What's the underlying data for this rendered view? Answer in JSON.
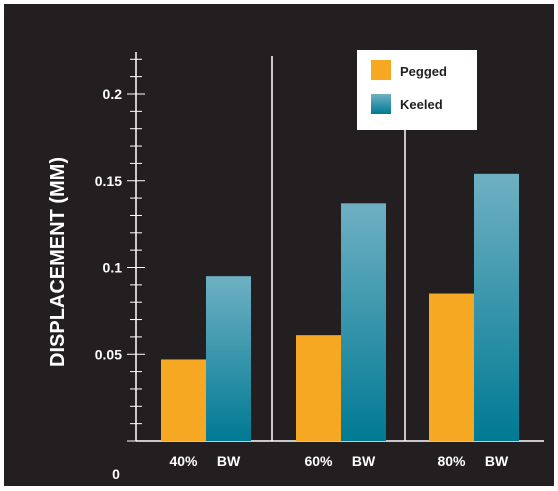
{
  "chart_data": {
    "type": "bar",
    "ylabel": "DISPLACEMENT (MM)",
    "ylim": [
      0,
      0.225
    ],
    "y_ticks": [
      "0.05",
      "0.1",
      "0.15",
      "0.2"
    ],
    "y_tick_values": [
      0.05,
      0.1,
      0.15,
      0.2
    ],
    "zero_label": "0",
    "grid": false,
    "groups": [
      {
        "categories": [
          "40%",
          "BW"
        ]
      },
      {
        "categories": [
          "60%",
          "BW"
        ]
      },
      {
        "categories": [
          "80%",
          "BW"
        ]
      }
    ],
    "series": [
      {
        "name": "Pegged",
        "values": [
          0.047,
          0.061,
          0.085
        ]
      },
      {
        "name": "Keeled",
        "values": [
          0.095,
          0.137,
          0.154
        ]
      }
    ],
    "legend_position": "top-right",
    "colors": {
      "background": "#231f20",
      "pegged": "#f7a823",
      "keeled_top": "#6fb0c3",
      "keeled_bottom": "#007a93",
      "axis": "#ffffff"
    }
  }
}
